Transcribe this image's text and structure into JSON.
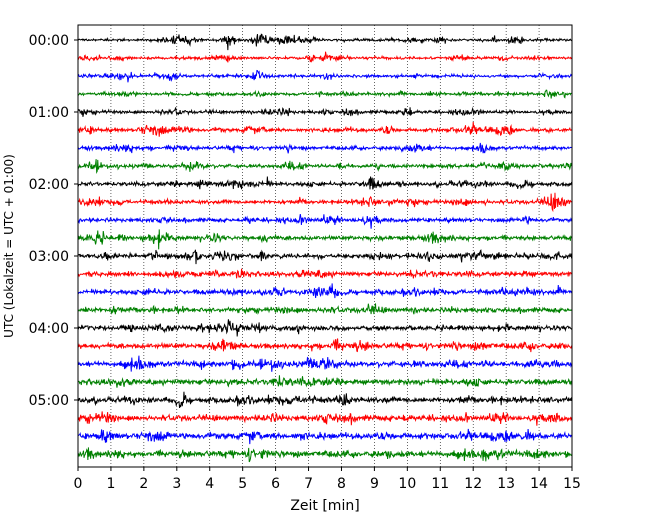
{
  "chart_data": {
    "type": "line",
    "subtype": "helicorder-seismogram",
    "title": "",
    "xlabel": "Zeit  [min]",
    "ylabel": "UTC (Lokalzeit = UTC + 01:00)",
    "xlim": [
      0,
      15
    ],
    "x_ticks": [
      "0",
      "1",
      "2",
      "3",
      "4",
      "5",
      "6",
      "7",
      "8",
      "9",
      "10",
      "11",
      "12",
      "13",
      "14",
      "15"
    ],
    "y_tick_labels": [
      "00:00",
      "01:00",
      "02:00",
      "03:00",
      "04:00",
      "05:00"
    ],
    "trace_minutes": 15,
    "trace_count": 24,
    "trace_start_times_utc": [
      "00:00",
      "00:15",
      "00:30",
      "00:45",
      "01:00",
      "01:15",
      "01:30",
      "01:45",
      "02:00",
      "02:15",
      "02:30",
      "02:45",
      "03:00",
      "03:15",
      "03:30",
      "03:45",
      "04:00",
      "04:15",
      "04:30",
      "04:45",
      "05:00",
      "05:15",
      "05:30",
      "05:45"
    ],
    "trace_colors_cycle": [
      "#000000",
      "#ff0000",
      "#0000ff",
      "#008000"
    ],
    "vertical_grid": "dotted",
    "notable_events": [
      {
        "trace": 4,
        "minute": 10.0,
        "amplitude": "large"
      },
      {
        "trace": 8,
        "minute": 12.4,
        "amplitude": "spike"
      },
      {
        "trace": 20,
        "minute": 8.1,
        "amplitude": "large"
      },
      {
        "trace": 0,
        "minute": 3.4,
        "amplitude": "medium"
      },
      {
        "trace": 8,
        "minute": 11.7,
        "amplitude": "medium"
      }
    ]
  }
}
